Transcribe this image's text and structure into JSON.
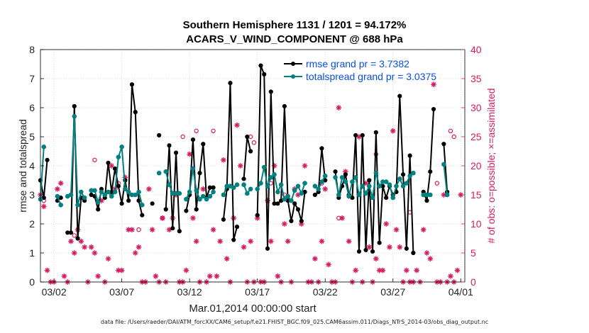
{
  "chart_data": {
    "type": "line",
    "title": "Southern Hemisphere 1131 / 1201 = 94.172%",
    "subtitle": "ACARS_V_WIND_COMPONENT @ 688 hPa",
    "xlabel": "Mar.01,2014 00:00:00 start",
    "ylabel_left": "rmse and totalspread",
    "ylabel_right": "# of obs: o=possible; ×=assimilated",
    "footer": "data file: /Users/raeder/DAI/ATM_forcXX/CAM6_setup/f.e21.FHIST_BGC.f09_025.CAM6assim.011/Diags_NTrS_2014-03/obs_diag_output.nc",
    "xlim": [
      0,
      31.3
    ],
    "ylim_left": [
      0,
      8
    ],
    "ylim_right": [
      0,
      40
    ],
    "grid": true,
    "x_ticks": [
      {
        "x": 1,
        "label": "03/02"
      },
      {
        "x": 6,
        "label": "03/07"
      },
      {
        "x": 11,
        "label": "03/12"
      },
      {
        "x": 16,
        "label": "03/17"
      },
      {
        "x": 21,
        "label": "03/22"
      },
      {
        "x": 26,
        "label": "03/27"
      },
      {
        "x": 31,
        "label": "04/01"
      }
    ],
    "y_ticks_left": [
      "0",
      "1",
      "2",
      "3",
      "4",
      "5",
      "6",
      "7",
      "8"
    ],
    "y_ticks_right": [
      "0",
      "5",
      "10",
      "15",
      "20",
      "25",
      "30",
      "35",
      "40"
    ],
    "legend": [
      {
        "name": "rmse grand pr = 3.7382",
        "color": "#000000"
      },
      {
        "name": "totalspread grand pr = 3.0375",
        "color": "#00807f"
      }
    ],
    "legend_placement": "top-right",
    "colors": {
      "rmse": "#000000",
      "spread": "#00807f",
      "obs": "#d81b60",
      "legend_text": "#0a4fe0",
      "right_axis": "#d81b60"
    },
    "x_step": 0.25,
    "rmse": [
      [
        0,
        3.5
      ],
      [
        0.25,
        2.9
      ],
      [
        0.5,
        4.2
      ],
      [
        1.25,
        2.8
      ],
      [
        1.5,
        2.9
      ],
      [
        2.0,
        1.7
      ],
      [
        2.25,
        1.7
      ],
      [
        2.5,
        6.05
      ],
      [
        2.75,
        1.5
      ],
      [
        3.0,
        2.9
      ],
      [
        3.25,
        2.8
      ],
      [
        3.75,
        3.0
      ],
      [
        4.0,
        2.95
      ],
      [
        4.25,
        2.5
      ],
      [
        4.5,
        3.2
      ],
      [
        4.75,
        2.9
      ],
      [
        5.0,
        4.1
      ],
      [
        5.25,
        3.1
      ],
      [
        5.5,
        3.9
      ],
      [
        5.75,
        3.3
      ],
      [
        6.0,
        2.7
      ],
      [
        6.25,
        3.5
      ],
      [
        6.5,
        2.8
      ],
      [
        6.75,
        6.8
      ],
      [
        7.0,
        5.85
      ],
      [
        7.25,
        2.8
      ],
      [
        7.5,
        2.3
      ],
      [
        8.25,
        2.7
      ],
      [
        8.75,
        5.05
      ],
      [
        9.25,
        2.5
      ],
      [
        9.5,
        4.7
      ],
      [
        9.75,
        1.85
      ],
      [
        10.0,
        4.45
      ],
      [
        10.25,
        1.75
      ],
      [
        10.75,
        2.45
      ],
      [
        11.0,
        3.0
      ],
      [
        11.25,
        4.9
      ],
      [
        11.5,
        2.5
      ],
      [
        11.75,
        3.75
      ],
      [
        12.0,
        4.75
      ],
      [
        12.25,
        2.9
      ],
      [
        12.5,
        3.25
      ],
      [
        12.75,
        3.25
      ],
      [
        13.5,
        2.15
      ],
      [
        13.75,
        3.2
      ],
      [
        14.0,
        6.85
      ],
      [
        14.25,
        1.45
      ],
      [
        14.5,
        1.9
      ],
      [
        15.0,
        3.55
      ],
      [
        15.25,
        5.0
      ],
      [
        15.5,
        4.5
      ],
      [
        16.0,
        2.3
      ],
      [
        16.25,
        7.45
      ],
      [
        16.5,
        7.15
      ],
      [
        16.75,
        1.15
      ],
      [
        17.0,
        6.55
      ],
      [
        17.25,
        2.7
      ],
      [
        17.5,
        2.7
      ],
      [
        17.75,
        2.8
      ],
      [
        18.0,
        6.05
      ],
      [
        18.25,
        2.8
      ],
      [
        18.5,
        2.1
      ],
      [
        18.75,
        2.7
      ],
      [
        19.0,
        2.5
      ],
      [
        19.25,
        2.1
      ],
      [
        19.5,
        3.1
      ],
      [
        20.25,
        3.0
      ],
      [
        20.5,
        3.1
      ],
      [
        20.75,
        4.6
      ],
      [
        21.0,
        3.5
      ],
      [
        21.75,
        3.8
      ],
      [
        22.0,
        2.9
      ],
      [
        22.25,
        3.3
      ],
      [
        22.5,
        3.7
      ],
      [
        22.75,
        3.0
      ],
      [
        23.0,
        2.9
      ],
      [
        23.25,
        5.05
      ],
      [
        23.5,
        1.05
      ],
      [
        23.75,
        5.05
      ],
      [
        24.0,
        1.1
      ],
      [
        24.25,
        3.5
      ],
      [
        24.5,
        1.05
      ],
      [
        24.75,
        5.15
      ],
      [
        25.0,
        1.35
      ],
      [
        25.25,
        3.3
      ],
      [
        25.5,
        2.9
      ],
      [
        25.75,
        3.3
      ],
      [
        26.0,
        3.0
      ],
      [
        26.25,
        3.1
      ],
      [
        26.5,
        6.4
      ],
      [
        26.75,
        3.7
      ],
      [
        27.0,
        1.15
      ],
      [
        27.25,
        4.35
      ],
      [
        27.5,
        1.0
      ],
      [
        28.25,
        3.1
      ],
      [
        28.5,
        2.8
      ],
      [
        28.75,
        3.8
      ],
      [
        29.0,
        5.95
      ],
      [
        29.75,
        4.75
      ],
      [
        30.0,
        3.1
      ]
    ],
    "spread": [
      [
        0,
        2.85
      ],
      [
        0.25,
        4.65
      ],
      [
        1.25,
        2.95
      ],
      [
        1.5,
        2.65
      ],
      [
        2.0,
        2.95
      ],
      [
        2.25,
        3.0
      ],
      [
        2.5,
        5.7
      ],
      [
        2.75,
        2.65
      ],
      [
        3.0,
        3.1
      ],
      [
        3.25,
        2.9
      ],
      [
        3.75,
        3.15
      ],
      [
        4.0,
        3.15
      ],
      [
        4.25,
        2.75
      ],
      [
        4.5,
        3.1
      ],
      [
        4.75,
        3.0
      ],
      [
        5.0,
        3.1
      ],
      [
        5.25,
        2.95
      ],
      [
        5.5,
        3.1
      ],
      [
        5.75,
        4.3
      ],
      [
        6.0,
        4.65
      ],
      [
        6.25,
        3.2
      ],
      [
        6.5,
        3.1
      ],
      [
        6.75,
        3.0
      ],
      [
        7.0,
        3.0
      ],
      [
        7.25,
        3.1
      ],
      [
        7.5,
        2.65
      ],
      [
        8.75,
        3.75
      ],
      [
        9.25,
        3.8
      ],
      [
        9.5,
        3.35
      ],
      [
        9.75,
        3.05
      ],
      [
        10.0,
        3.05
      ],
      [
        10.25,
        3.05
      ],
      [
        10.75,
        2.85
      ],
      [
        11.0,
        3.1
      ],
      [
        11.25,
        3.9
      ],
      [
        11.5,
        3.15
      ],
      [
        11.75,
        2.85
      ],
      [
        12.0,
        2.95
      ],
      [
        12.25,
        2.85
      ],
      [
        12.5,
        2.95
      ],
      [
        12.75,
        3.1
      ],
      [
        13.5,
        3.0
      ],
      [
        13.75,
        3.3
      ],
      [
        14.0,
        3.3
      ],
      [
        14.25,
        3.25
      ],
      [
        14.5,
        3.35
      ],
      [
        15.0,
        3.35
      ],
      [
        15.25,
        3.05
      ],
      [
        15.5,
        3.2
      ],
      [
        16.0,
        3.2
      ],
      [
        16.25,
        3.4
      ],
      [
        16.5,
        3.95
      ],
      [
        16.75,
        3.3
      ],
      [
        17.0,
        3.6
      ],
      [
        17.25,
        3.7
      ],
      [
        17.5,
        3.1
      ],
      [
        17.75,
        3.35
      ],
      [
        18.0,
        2.85
      ],
      [
        18.25,
        2.95
      ],
      [
        18.5,
        2.8
      ],
      [
        18.75,
        3.15
      ],
      [
        19.0,
        3.3
      ],
      [
        19.25,
        3.05
      ],
      [
        19.5,
        3.4
      ],
      [
        20.25,
        3.3
      ],
      [
        20.5,
        3.2
      ],
      [
        20.75,
        3.45
      ],
      [
        21.0,
        3.65
      ],
      [
        21.75,
        3.6
      ],
      [
        22.0,
        3.0
      ],
      [
        22.25,
        3.6
      ],
      [
        22.5,
        3.45
      ],
      [
        22.75,
        2.95
      ],
      [
        23.0,
        3.45
      ],
      [
        23.25,
        3.6
      ],
      [
        23.5,
        3.0
      ],
      [
        23.75,
        3.3
      ],
      [
        24.0,
        3.05
      ],
      [
        24.25,
        3.3
      ],
      [
        24.5,
        2.9
      ],
      [
        24.75,
        3.75
      ],
      [
        25.0,
        3.3
      ],
      [
        25.25,
        3.45
      ],
      [
        25.5,
        3.45
      ],
      [
        25.75,
        3.35
      ],
      [
        26.0,
        2.9
      ],
      [
        26.25,
        3.3
      ],
      [
        26.5,
        3.55
      ],
      [
        26.75,
        3.3
      ],
      [
        27.0,
        3.4
      ],
      [
        27.25,
        3.65
      ],
      [
        27.5,
        3.75
      ],
      [
        28.25,
        3.0
      ],
      [
        28.5,
        3.0
      ],
      [
        28.75,
        3.0
      ],
      [
        29.75,
        4.05
      ],
      [
        30.0,
        3.0
      ]
    ],
    "obs_assimilated": [
      [
        0,
        15
      ],
      [
        0.25,
        13
      ],
      [
        0.5,
        2
      ],
      [
        0.75,
        0
      ],
      [
        1.0,
        0
      ],
      [
        1.25,
        16
      ],
      [
        1.5,
        17
      ],
      [
        1.75,
        1
      ],
      [
        2.0,
        0
      ],
      [
        2.25,
        7
      ],
      [
        2.5,
        5
      ],
      [
        2.75,
        9
      ],
      [
        3.0,
        7
      ],
      [
        3.25,
        6
      ],
      [
        3.5,
        0
      ],
      [
        3.75,
        6
      ],
      [
        4.0,
        5
      ],
      [
        4.25,
        1
      ],
      [
        4.5,
        14
      ],
      [
        4.75,
        0
      ],
      [
        5.0,
        4
      ],
      [
        5.25,
        20
      ],
      [
        5.5,
        16
      ],
      [
        5.75,
        2
      ],
      [
        6.0,
        2
      ],
      [
        6.25,
        18
      ],
      [
        6.5,
        9
      ],
      [
        6.75,
        9
      ],
      [
        7.0,
        5
      ],
      [
        7.25,
        6
      ],
      [
        7.5,
        0
      ],
      [
        7.75,
        0
      ],
      [
        8.0,
        16
      ],
      [
        8.25,
        9
      ],
      [
        8.5,
        1
      ],
      [
        8.75,
        0
      ],
      [
        9.0,
        11
      ],
      [
        9.25,
        0
      ],
      [
        9.5,
        9
      ],
      [
        9.75,
        11
      ],
      [
        10.0,
        15
      ],
      [
        10.25,
        0
      ],
      [
        10.5,
        0
      ],
      [
        10.75,
        2
      ],
      [
        11.0,
        22
      ],
      [
        11.25,
        11
      ],
      [
        11.5,
        7
      ],
      [
        11.75,
        0
      ],
      [
        12.0,
        16
      ],
      [
        12.25,
        0
      ],
      [
        12.5,
        1
      ],
      [
        12.75,
        9
      ],
      [
        13.0,
        1
      ],
      [
        13.25,
        7
      ],
      [
        13.5,
        21
      ],
      [
        13.75,
        4
      ],
      [
        14.0,
        0
      ],
      [
        14.25,
        11
      ],
      [
        14.5,
        27
      ],
      [
        14.75,
        20
      ],
      [
        15.0,
        6
      ],
      [
        15.25,
        0
      ],
      [
        15.5,
        7
      ],
      [
        15.75,
        0
      ],
      [
        16.0,
        11
      ],
      [
        16.25,
        0
      ],
      [
        16.5,
        0
      ],
      [
        16.75,
        14
      ],
      [
        17.0,
        7
      ],
      [
        17.25,
        20
      ],
      [
        17.5,
        1
      ],
      [
        17.75,
        0
      ],
      [
        18.0,
        10
      ],
      [
        18.25,
        7
      ],
      [
        18.5,
        0
      ],
      [
        18.75,
        16
      ],
      [
        19.0,
        15
      ],
      [
        19.25,
        10
      ],
      [
        19.5,
        20
      ],
      [
        19.75,
        0
      ],
      [
        20.0,
        0
      ],
      [
        20.25,
        4
      ],
      [
        20.5,
        0
      ],
      [
        20.75,
        7
      ],
      [
        21.0,
        16
      ],
      [
        21.25,
        3
      ],
      [
        21.5,
        0
      ],
      [
        21.75,
        0
      ],
      [
        22.0,
        30
      ],
      [
        22.25,
        11
      ],
      [
        22.5,
        19
      ],
      [
        22.75,
        7
      ],
      [
        23.0,
        0
      ],
      [
        23.25,
        2
      ],
      [
        23.5,
        25
      ],
      [
        23.75,
        0
      ],
      [
        24.0,
        17
      ],
      [
        24.25,
        6
      ],
      [
        24.5,
        0
      ],
      [
        24.75,
        4
      ],
      [
        25.0,
        2
      ],
      [
        25.25,
        2
      ],
      [
        25.5,
        10
      ],
      [
        25.75,
        6
      ],
      [
        26.0,
        26
      ],
      [
        26.25,
        9
      ],
      [
        26.5,
        6
      ],
      [
        26.75,
        0
      ],
      [
        27.0,
        2
      ],
      [
        27.25,
        0
      ],
      [
        27.5,
        0
      ],
      [
        27.75,
        2
      ],
      [
        28.0,
        0
      ],
      [
        28.25,
        9
      ],
      [
        28.5,
        5
      ],
      [
        28.75,
        4
      ],
      [
        29.0,
        34
      ],
      [
        29.25,
        0
      ],
      [
        29.5,
        0
      ],
      [
        29.75,
        15
      ],
      [
        30.0,
        0
      ],
      [
        30.25,
        1
      ],
      [
        30.5,
        0
      ],
      [
        30.75,
        2
      ],
      [
        31.0,
        15
      ]
    ],
    "obs_possible": [
      [
        0.25,
        14
      ],
      [
        2.5,
        8
      ],
      [
        4.0,
        21
      ],
      [
        5.75,
        17
      ],
      [
        7.25,
        9
      ],
      [
        9.0,
        11
      ],
      [
        10.5,
        25
      ],
      [
        11.5,
        26
      ],
      [
        12.75,
        26
      ],
      [
        15.5,
        25
      ],
      [
        15.75,
        24
      ],
      [
        17.0,
        17
      ],
      [
        18.0,
        15
      ],
      [
        20.75,
        17
      ],
      [
        22.0,
        11
      ],
      [
        24.75,
        22
      ],
      [
        27.25,
        12
      ],
      [
        29.25,
        17
      ],
      [
        30.25,
        26
      ],
      [
        30.5,
        25
      ]
    ]
  }
}
